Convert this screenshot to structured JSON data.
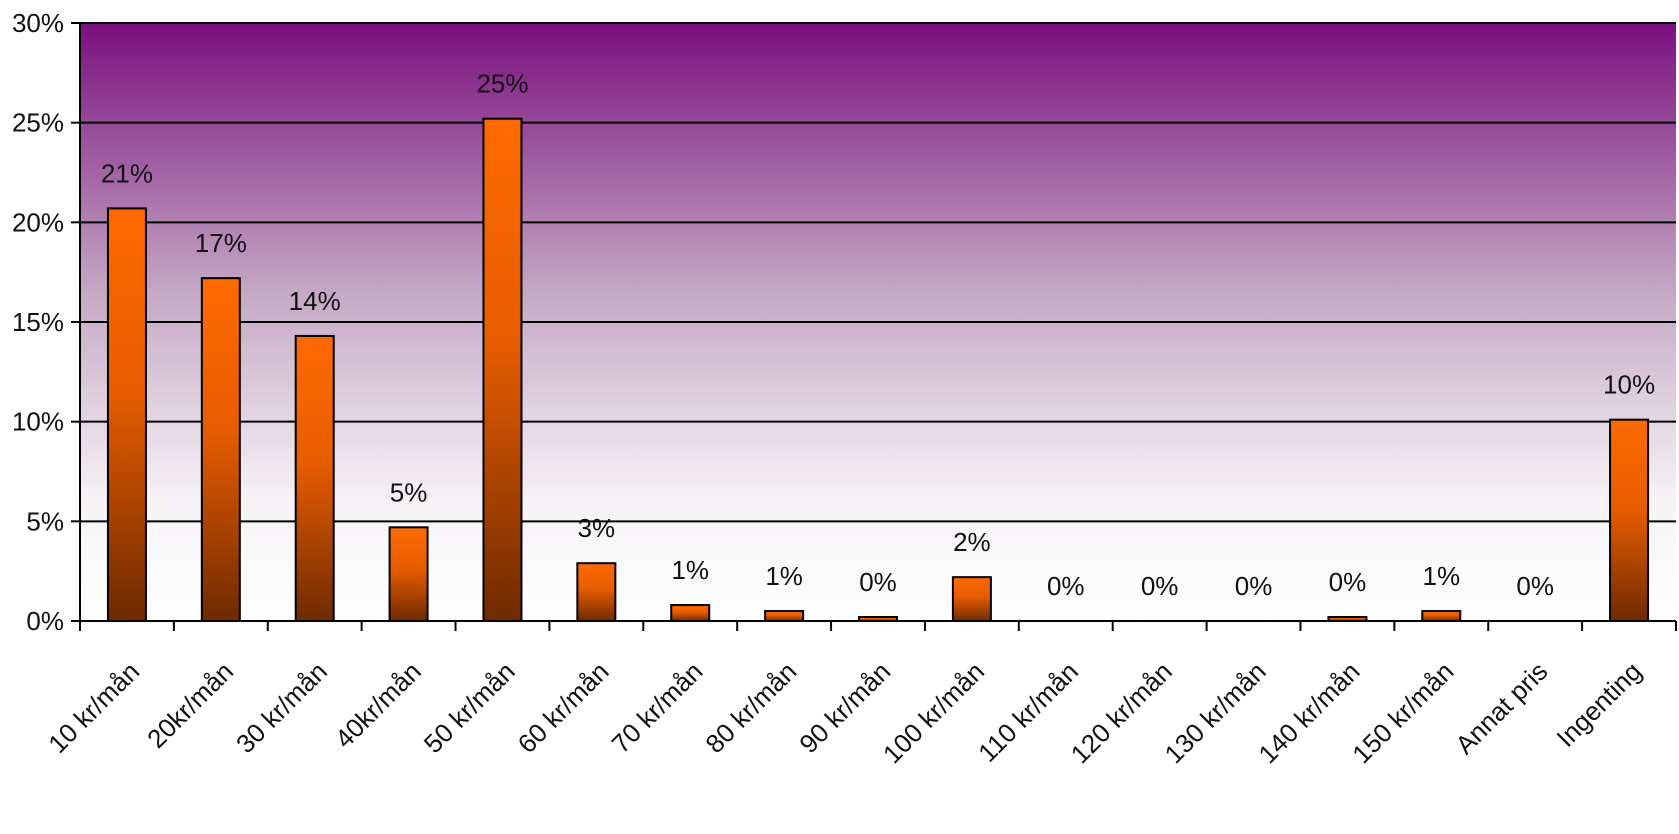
{
  "chart_data": {
    "type": "bar",
    "categories": [
      "10 kr/mån",
      "20kr/mån",
      "30 kr/mån",
      "40kr/mån",
      "50 kr/mån",
      "60 kr/mån",
      "70 kr/mån",
      "80 kr/mån",
      "90 kr/mån",
      "100 kr/mån",
      "110 kr/mån",
      "120 kr/mån",
      "130 kr/mån",
      "140 kr/mån",
      "150 kr/mån",
      "Annat pris",
      "Ingenting"
    ],
    "values": [
      20.7,
      17.2,
      14.3,
      4.7,
      25.2,
      2.9,
      0.8,
      0.5,
      0.2,
      2.2,
      0,
      0,
      0,
      0.2,
      0.5,
      0,
      10.1
    ],
    "data_labels": [
      "21%",
      "17%",
      "14%",
      "5%",
      "25%",
      "3%",
      "1%",
      "1%",
      "0%",
      "2%",
      "0%",
      "0%",
      "0%",
      "0%",
      "1%",
      "0%",
      "10%"
    ],
    "y_ticks": [
      "0%",
      "5%",
      "10%",
      "15%",
      "20%",
      "25%",
      "30%"
    ],
    "ylim": [
      0,
      30
    ],
    "grid": true,
    "legend": "none",
    "colors": {
      "bar_top": "#ff6a00",
      "bar_bottom": "#6e2a00",
      "plot_bg_top": "#7a0f7f",
      "plot_bg_bottom": "#ffffff",
      "gridline": "#000000"
    }
  }
}
